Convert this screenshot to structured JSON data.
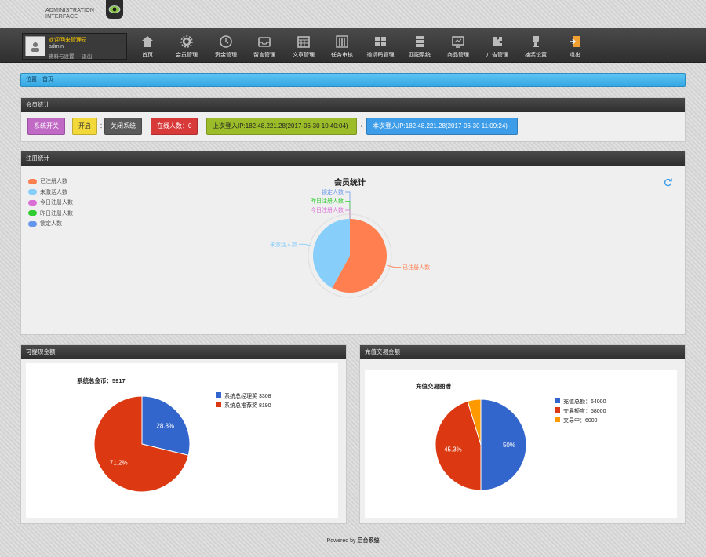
{
  "brand": {
    "line1": "ADMINISTRATION",
    "line2": "INTERFACE"
  },
  "user": {
    "welcome": "欢迎回来管理员",
    "name": "admin",
    "link_profile": "资料与设置",
    "link_logout": "退出"
  },
  "nav": [
    {
      "label": "首页",
      "icon": "home-icon"
    },
    {
      "label": "会员管理",
      "icon": "gear-icon"
    },
    {
      "label": "资金管理",
      "icon": "clock-icon"
    },
    {
      "label": "留言管理",
      "icon": "inbox-icon"
    },
    {
      "label": "文章管理",
      "icon": "calendar-icon"
    },
    {
      "label": "任务审核",
      "icon": "sliders-icon"
    },
    {
      "label": "邀请码管理",
      "icon": "grid-icon"
    },
    {
      "label": "匹配系统",
      "icon": "server-icon"
    },
    {
      "label": "商品管理",
      "icon": "monitor-icon"
    },
    {
      "label": "广告管理",
      "icon": "puzzle-icon"
    },
    {
      "label": "抽奖设置",
      "icon": "trophy-icon"
    },
    {
      "label": "退出",
      "icon": "exit-door-icon"
    }
  ],
  "breadcrumb": "位置：首页",
  "member_panel": {
    "title": "会员统计",
    "btn_switch": "系统开关",
    "btn_on": "开启",
    "colon": "：",
    "btn_close": "关闭系统",
    "btn_online": "在线人数：0",
    "btn_last_login": "上次登入IP:182.48.221.28(2017-06-30 10:40:04)",
    "slash": "/",
    "btn_this_login": "本次登入IP:182.48.221.28(2017-06-30 11:09:24)"
  },
  "reg_panel": {
    "title": "注册统计",
    "legend": [
      {
        "label": "已注册人数",
        "color": "#ff7f50"
      },
      {
        "label": "未激活人数",
        "color": "#87cefa"
      },
      {
        "label": "今日注册人数",
        "color": "#da70d6"
      },
      {
        "label": "昨日注册人数",
        "color": "#32cd32"
      },
      {
        "label": "锁定人数",
        "color": "#6495ed"
      }
    ],
    "chart_data": {
      "type": "pie",
      "title": "会员统计",
      "slices": [
        {
          "label": "已注册人数",
          "value": 58,
          "color": "#ff7f50"
        },
        {
          "label": "未激活人数",
          "value": 42,
          "color": "#87cefa"
        },
        {
          "label": "今日注册人数",
          "value": 0,
          "color": "#da70d6"
        },
        {
          "label": "昨日注册人数",
          "value": 0,
          "color": "#32cd32"
        },
        {
          "label": "锁定人数",
          "value": 0,
          "color": "#6495ed"
        }
      ]
    }
  },
  "cash_panel": {
    "title": "可提现金额",
    "chart_data": {
      "type": "pie",
      "title": "系统总金币：5917",
      "slices": [
        {
          "label": "系统总经理奖 3308",
          "value": 28.8,
          "pct": "28.8%",
          "color": "#3366cc"
        },
        {
          "label": "系统总推荐奖 8190",
          "value": 71.2,
          "pct": "71.2%",
          "color": "#dc3912"
        }
      ]
    }
  },
  "trade_panel": {
    "title": "充值交易金额",
    "chart_data": {
      "type": "pie",
      "title": "充值交易图谱",
      "slices": [
        {
          "label": "充值总额：64000",
          "value": 50,
          "pct": "50%",
          "color": "#3366cc"
        },
        {
          "label": "交易额度：58000",
          "value": 45.3,
          "pct": "45.3%",
          "color": "#dc3912"
        },
        {
          "label": "交易中：6000",
          "value": 4.7,
          "pct": "",
          "color": "#ff9900"
        }
      ]
    }
  },
  "footer": {
    "prefix": "Powered by ",
    "name": "后台系统"
  }
}
